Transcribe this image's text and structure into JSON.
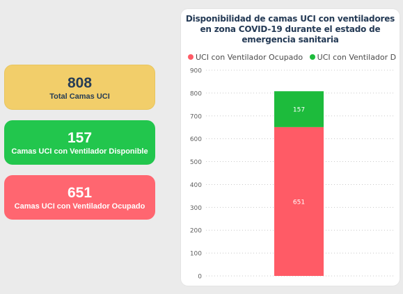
{
  "cards": {
    "total": {
      "value": "808",
      "label": "Total Camas UCI"
    },
    "free": {
      "value": "157",
      "label": "Camas UCI con Ventilador Disponible"
    },
    "busy": {
      "value": "651",
      "label": "Camas UCI con Ventilador Ocupado"
    }
  },
  "colors": {
    "occupied": "#ff5b66",
    "available": "#1dbb3c",
    "total_card": "#f2ce6a"
  },
  "chart_data": {
    "type": "bar",
    "stacked": true,
    "title": "Disponibilidad de camas UCI con ventiladores en zona COVID-19 durante el estado de emergencia sanitaria",
    "xlabel": "",
    "ylabel": "",
    "ylim": [
      0,
      900
    ],
    "yticks": [
      0,
      100,
      200,
      300,
      400,
      500,
      600,
      700,
      800,
      900
    ],
    "grid": true,
    "legend_position": "top-left",
    "categories": [
      ""
    ],
    "series": [
      {
        "name": "UCI con Ventilador Ocupado",
        "legend_label": "UCI con Ventilador Ocupado",
        "values": [
          651
        ],
        "color": "#ff5b66"
      },
      {
        "name": "UCI con Ventilador Disponible",
        "legend_label": "UCI con Ventilador Dispon...",
        "values": [
          157
        ],
        "color": "#1dbb3c"
      }
    ]
  }
}
